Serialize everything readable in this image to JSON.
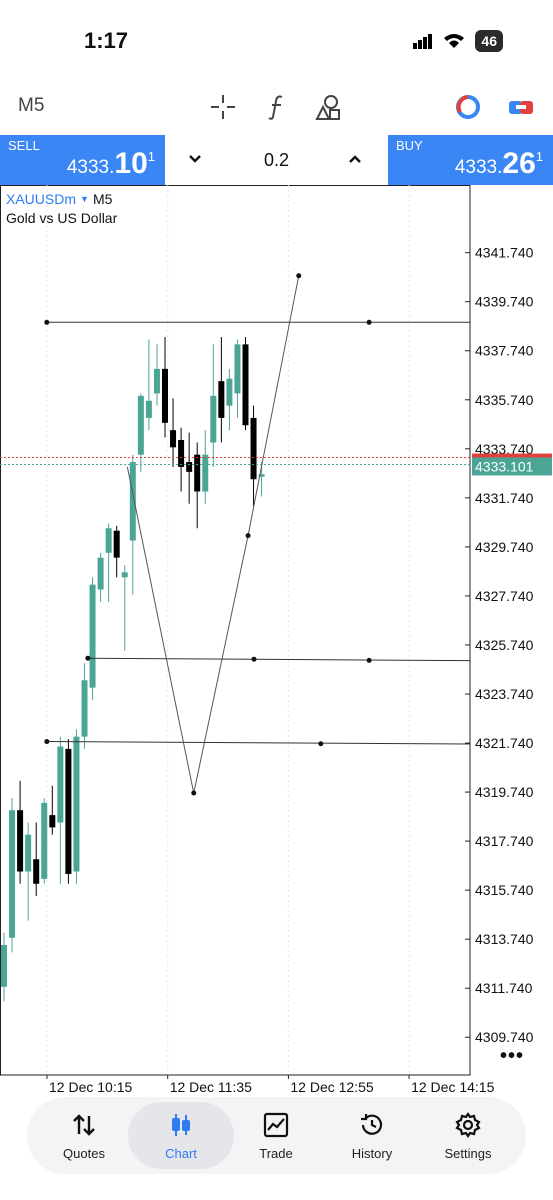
{
  "status_bar": {
    "time": "1:17",
    "battery": "46"
  },
  "toolbar": {
    "timeframe": "M5",
    "icons": [
      "crosshair-icon",
      "function-icon",
      "objects-icon",
      "account-icon",
      "trade-toggle-icon"
    ]
  },
  "trade": {
    "sell": {
      "label": "SELL",
      "price_main": "4333.",
      "price_big": "10",
      "price_sup": "1"
    },
    "buy": {
      "label": "BUY",
      "price_main": "4333.",
      "price_big": "26",
      "price_sup": "1"
    },
    "volume": "0.2"
  },
  "chart": {
    "symbol": "XAUUSDm",
    "timeframe": "M5",
    "description": "Gold vs US Dollar",
    "current_price": "4333.101",
    "more": "•••"
  },
  "chart_data": {
    "type": "candlestick",
    "ylim": [
      4308.2,
      4344.5
    ],
    "y_ticks": [
      "4341.740",
      "4339.740",
      "4337.740",
      "4335.740",
      "4333.740",
      "4331.740",
      "4329.740",
      "4327.740",
      "4325.740",
      "4323.740",
      "4321.740",
      "4319.740",
      "4317.740",
      "4315.740",
      "4313.740",
      "4311.740",
      "4309.740"
    ],
    "x_ticks": [
      "12 Dec 10:15",
      "12 Dec 11:35",
      "12 Dec 12:55",
      "12 Dec 14:15"
    ],
    "current_price": 4333.101,
    "bid": 4333.101,
    "ask": 4333.261,
    "colors": {
      "bull": "#4aa597",
      "bear": "#000000",
      "bid_line": "#4aa597",
      "ask_line": "#e0413d",
      "grid": "#e6e6e6"
    },
    "candles": [
      {
        "o": 4311.8,
        "h": 4314.0,
        "l": 4311.2,
        "c": 4313.5
      },
      {
        "o": 4313.8,
        "h": 4319.5,
        "l": 4313.2,
        "c": 4319.0
      },
      {
        "o": 4319.0,
        "h": 4320.2,
        "l": 4316.0,
        "c": 4316.5
      },
      {
        "o": 4316.5,
        "h": 4318.5,
        "l": 4314.5,
        "c": 4318.0
      },
      {
        "o": 4317.0,
        "h": 4318.5,
        "l": 4315.5,
        "c": 4316.0
      },
      {
        "o": 4316.2,
        "h": 4319.5,
        "l": 4316.0,
        "c": 4319.3
      },
      {
        "o": 4318.8,
        "h": 4320.0,
        "l": 4318.0,
        "c": 4318.3
      },
      {
        "o": 4318.5,
        "h": 4322.0,
        "l": 4316.0,
        "c": 4321.6
      },
      {
        "o": 4321.5,
        "h": 4321.9,
        "l": 4316.0,
        "c": 4316.4
      },
      {
        "o": 4316.5,
        "h": 4322.3,
        "l": 4316.0,
        "c": 4322.0
      },
      {
        "o": 4322.0,
        "h": 4325.0,
        "l": 4321.5,
        "c": 4324.3
      },
      {
        "o": 4324.0,
        "h": 4328.5,
        "l": 4323.5,
        "c": 4328.2
      },
      {
        "o": 4328.0,
        "h": 4329.5,
        "l": 4327.5,
        "c": 4329.3
      },
      {
        "o": 4329.5,
        "h": 4330.7,
        "l": 4327.5,
        "c": 4330.5
      },
      {
        "o": 4330.4,
        "h": 4330.6,
        "l": 4328.5,
        "c": 4329.3
      },
      {
        "o": 4328.5,
        "h": 4329.0,
        "l": 4325.5,
        "c": 4328.7
      },
      {
        "o": 4330.0,
        "h": 4333.5,
        "l": 4327.8,
        "c": 4333.2
      },
      {
        "o": 4333.5,
        "h": 4336.0,
        "l": 4332.8,
        "c": 4335.9
      },
      {
        "o": 4335.0,
        "h": 4338.2,
        "l": 4334.5,
        "c": 4335.7
      },
      {
        "o": 4336.0,
        "h": 4338.0,
        "l": 4335.5,
        "c": 4337.0
      },
      {
        "o": 4337.0,
        "h": 4338.3,
        "l": 4334.2,
        "c": 4334.8
      },
      {
        "o": 4334.5,
        "h": 4335.8,
        "l": 4333.0,
        "c": 4333.8
      },
      {
        "o": 4334.1,
        "h": 4334.6,
        "l": 4332.0,
        "c": 4333.0
      },
      {
        "o": 4333.2,
        "h": 4334.4,
        "l": 4331.5,
        "c": 4332.8
      },
      {
        "o": 4333.5,
        "h": 4334.0,
        "l": 4330.5,
        "c": 4332.0
      },
      {
        "o": 4332.0,
        "h": 4334.5,
        "l": 4331.5,
        "c": 4333.5
      },
      {
        "o": 4334.0,
        "h": 4338.0,
        "l": 4333.0,
        "c": 4335.9
      },
      {
        "o": 4336.5,
        "h": 4338.3,
        "l": 4334.0,
        "c": 4335.0
      },
      {
        "o": 4335.5,
        "h": 4337.0,
        "l": 4334.5,
        "c": 4336.6
      },
      {
        "o": 4336.0,
        "h": 4338.2,
        "l": 4335.0,
        "c": 4338.0
      },
      {
        "o": 4338.0,
        "h": 4338.3,
        "l": 4334.5,
        "c": 4334.7
      },
      {
        "o": 4335.0,
        "h": 4335.5,
        "l": 4331.4,
        "c": 4332.5
      },
      {
        "o": 4332.6,
        "h": 4333.2,
        "l": 4331.8,
        "c": 4332.7
      }
    ],
    "drawings": {
      "horizontal_lines": [
        {
          "y1": 4338.9,
          "y2": 4338.9,
          "x1": 0.33,
          "x2": 3.0
        },
        {
          "y1": 4325.2,
          "y2": 4325.1,
          "x1": 0.67,
          "x2": 3.0
        },
        {
          "y1": 4321.8,
          "y2": 4321.7,
          "x1": 0.33,
          "x2": 2.6
        }
      ],
      "zigzag": [
        {
          "x": 1.08,
          "y": 4333.0
        },
        {
          "x": 1.63,
          "y": 4319.7
        },
        {
          "x": 2.08,
          "y": 4330.2
        },
        {
          "x": 2.5,
          "y": 4340.8
        }
      ]
    }
  },
  "nav": [
    {
      "label": "Quotes",
      "icon": "quotes-icon",
      "active": false
    },
    {
      "label": "Chart",
      "icon": "chart-icon",
      "active": true
    },
    {
      "label": "Trade",
      "icon": "trade-icon",
      "active": false
    },
    {
      "label": "History",
      "icon": "history-icon",
      "active": false
    },
    {
      "label": "Settings",
      "icon": "settings-icon",
      "active": false
    }
  ]
}
